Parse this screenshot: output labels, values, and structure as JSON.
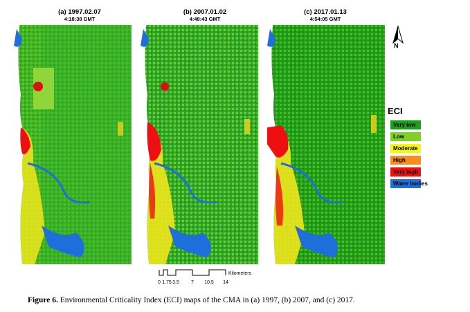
{
  "panels": [
    {
      "label": "(a) 1997.02.07",
      "time": "4:18:38 GMT"
    },
    {
      "label": "(b) 2007.01.02",
      "time": "4:48:43 GMT"
    },
    {
      "label": "(c) 2017.01.13",
      "time": "4:54:05 GMT"
    }
  ],
  "north_label": "N",
  "legend": {
    "title": "ECI",
    "items": [
      {
        "label": "Very low",
        "color": "#1aa01a"
      },
      {
        "label": "Low",
        "color": "#7fd21e"
      },
      {
        "label": "Moderate",
        "color": "#f5f516"
      },
      {
        "label": "High",
        "color": "#ff8c1a"
      },
      {
        "label": "Very high",
        "color": "#ee1010"
      },
      {
        "label": "Water bodies",
        "color": "#1e6fd9"
      }
    ]
  },
  "scale": {
    "unit": "Kilometers",
    "ticks": [
      "0",
      "1.75",
      "3.5",
      "7",
      "10.5",
      "14"
    ]
  },
  "caption": {
    "figure_label": "Figure 6.",
    "text": "Environmental Criticality Index (ECI) maps of the CMA in (a) 1997, (b) 2007, and (c) 2017."
  }
}
